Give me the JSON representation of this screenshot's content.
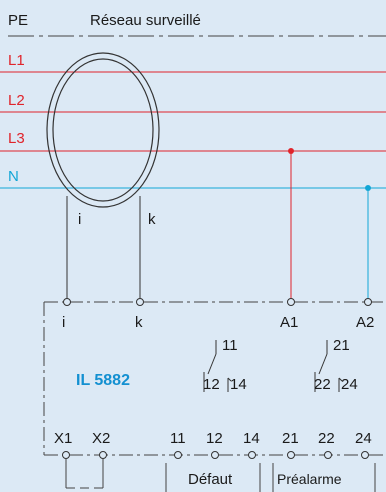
{
  "colors": {
    "background": "#dce9f5",
    "line_red": "#e0242b",
    "line_cyan": "#12a6d6",
    "device_label": "#1390d1",
    "wire": "#333333"
  },
  "network": {
    "pe_label": "PE",
    "title": "Réseau surveillé",
    "lines": [
      "L1",
      "L2",
      "L3",
      "N"
    ]
  },
  "transformer": {
    "terminal_i": "i",
    "terminal_k": "k"
  },
  "device": {
    "name": "IL 5882",
    "terminals_top": [
      "i",
      "k",
      "A1",
      "A2"
    ],
    "contact1": {
      "common": "11",
      "nc": "12",
      "no": "14"
    },
    "contact2": {
      "common": "21",
      "nc": "22",
      "no": "24"
    },
    "terminals_bottom": [
      "X1",
      "X2",
      "11",
      "12",
      "14",
      "21",
      "22",
      "24"
    ],
    "group_fault": "Défaut",
    "group_prealarm": "Préalarme"
  }
}
